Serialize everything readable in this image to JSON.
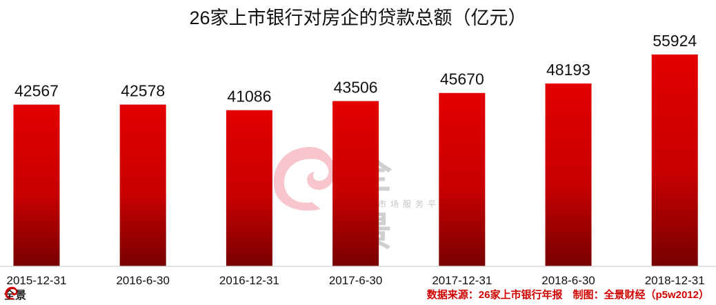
{
  "chart_data": {
    "type": "bar",
    "title": "26家上市银行对房企的贷款总额（亿元）",
    "categories": [
      "2015-12-31",
      "2016-6-30",
      "2016-12-31",
      "2017-6-30",
      "2017-12-31",
      "2018-6-30",
      "2018-12-31"
    ],
    "values": [
      42567,
      42578,
      41086,
      43506,
      45670,
      48193,
      55924
    ],
    "xlabel": "",
    "ylabel": "",
    "ylim": [
      0,
      55924
    ],
    "grid": false,
    "colors": {
      "bar_top": "#e30000",
      "bar_bottom": "#780000"
    }
  },
  "footer": {
    "source": "数据来源：26家上市银行年报　制图：全景财经（p5w2012）"
  },
  "logo": {
    "text": "全景"
  },
  "watermark": {
    "text": "全景",
    "subtitle": "资本市场服务平台"
  }
}
